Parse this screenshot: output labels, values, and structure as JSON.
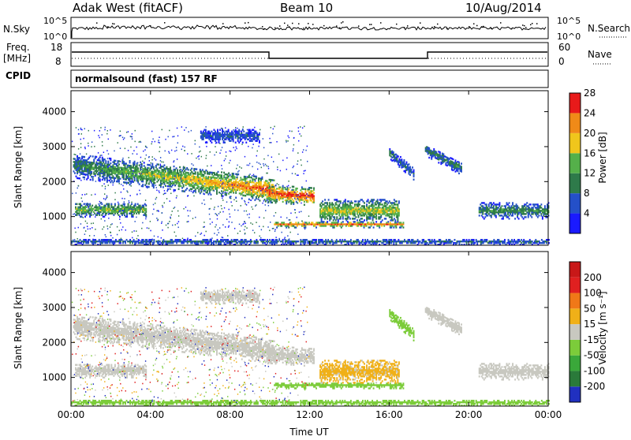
{
  "header": {
    "station": "Adak West (fitACF)",
    "beam": "Beam 10",
    "date": "10/Aug/2014"
  },
  "panels": {
    "nsky_label": "N.Sky",
    "nsky_ticks": [
      "10^5",
      "10^0"
    ],
    "nsearch_label": "N.Search",
    "nsearch_ticks": [
      "10^5",
      "10^0"
    ],
    "freq_label": "Freq.",
    "freq_unit": "[MHz]",
    "freq_ticks": [
      "18",
      "8"
    ],
    "nave_label": "Nave",
    "nave_ticks": [
      "60",
      "0"
    ],
    "cpid_label": "CPID",
    "cpid_value": "normalsound (fast) 157 RF"
  },
  "chart_data": [
    {
      "type": "heatmap",
      "panel": "power",
      "ylabel": "Slant Range [km]",
      "xlabel": "Time UT",
      "x_ticks": [
        "00:00",
        "04:00",
        "08:00",
        "12:00",
        "16:00",
        "20:00",
        "00:00"
      ],
      "y_ticks": [
        "1000",
        "2000",
        "3000",
        "4000"
      ],
      "ylim": [
        180,
        4600
      ],
      "xlim_hours": [
        0,
        24
      ],
      "colorbar": {
        "label": "Power [dB]",
        "ticks": [
          "4",
          "8",
          "12",
          "16",
          "20",
          "24",
          "28"
        ],
        "colors": [
          "#1a1aff",
          "#2450c8",
          "#2e7a4a",
          "#55b04a",
          "#f0c61c",
          "#f08a18",
          "#e81a1a"
        ]
      }
    },
    {
      "type": "heatmap",
      "panel": "velocity",
      "ylabel": "Slant Range [km]",
      "xlabel": "Time UT",
      "x_ticks": [
        "00:00",
        "04:00",
        "08:00",
        "12:00",
        "16:00",
        "20:00",
        "00:00"
      ],
      "y_ticks": [
        "1000",
        "2000",
        "3000",
        "4000"
      ],
      "ylim": [
        180,
        4600
      ],
      "xlim_hours": [
        0,
        24
      ],
      "colorbar": {
        "label": "Velocity [m s⁻¹]",
        "ticks": [
          "200",
          "100",
          "50",
          "15",
          "-15",
          "-50",
          "-100",
          "-200"
        ],
        "colors": [
          "#2030c0",
          "#2a7a3a",
          "#3aa83a",
          "#7ccc3a",
          "#c8c8c0",
          "#f0b018",
          "#f07818",
          "#e02020",
          "#c81818"
        ]
      }
    }
  ],
  "xlabel": "Time UT"
}
